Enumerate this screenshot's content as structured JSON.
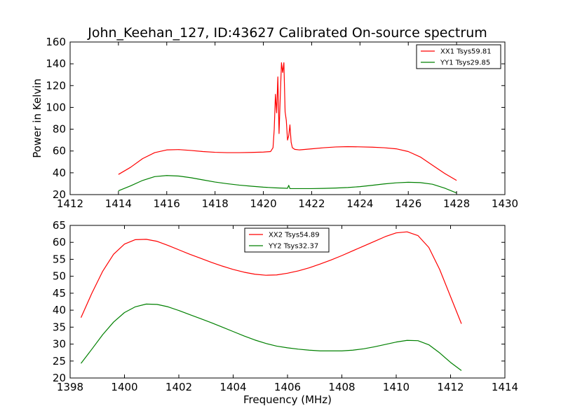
{
  "chart_data": [
    {
      "type": "line",
      "title": "John_Keehan_127, ID:43627 Calibrated On-source spectrum",
      "xlabel": "",
      "ylabel": "Power in Kelvin",
      "xlim": [
        1412,
        1430
      ],
      "ylim": [
        20,
        160
      ],
      "xticks": [
        1412,
        1414,
        1416,
        1418,
        1420,
        1422,
        1424,
        1426,
        1428,
        1430
      ],
      "yticks": [
        20,
        40,
        60,
        80,
        100,
        120,
        140,
        160
      ],
      "grid": false,
      "legend_position": "top-right",
      "series": [
        {
          "name": "XX1 Tsys59.81",
          "color": "#ff0000",
          "points": [
            [
              1414.0,
              38.5
            ],
            [
              1414.5,
              45
            ],
            [
              1415.0,
              53
            ],
            [
              1415.5,
              58.5
            ],
            [
              1416.0,
              61
            ],
            [
              1416.5,
              61.3
            ],
            [
              1417.0,
              60.5
            ],
            [
              1417.5,
              59.5
            ],
            [
              1418.0,
              58.8
            ],
            [
              1418.5,
              58.5
            ],
            [
              1419.0,
              58.5
            ],
            [
              1419.5,
              58.7
            ],
            [
              1420.0,
              59.0
            ],
            [
              1420.3,
              59.5
            ],
            [
              1420.4,
              63
            ],
            [
              1420.45,
              80
            ],
            [
              1420.5,
              112
            ],
            [
              1420.55,
              95
            ],
            [
              1420.6,
              128
            ],
            [
              1420.65,
              76
            ],
            [
              1420.7,
              110
            ],
            [
              1420.75,
              141
            ],
            [
              1420.8,
              132
            ],
            [
              1420.85,
              141
            ],
            [
              1420.9,
              96
            ],
            [
              1420.95,
              88
            ],
            [
              1421.0,
              70
            ],
            [
              1421.05,
              74
            ],
            [
              1421.1,
              84
            ],
            [
              1421.15,
              68
            ],
            [
              1421.2,
              63
            ],
            [
              1421.3,
              61.5
            ],
            [
              1421.5,
              61
            ],
            [
              1422.0,
              62
            ],
            [
              1422.5,
              63
            ],
            [
              1423.0,
              63.7
            ],
            [
              1423.5,
              64
            ],
            [
              1424.0,
              63.8
            ],
            [
              1424.5,
              63.5
            ],
            [
              1425.0,
              63
            ],
            [
              1425.5,
              62
            ],
            [
              1426.0,
              59.5
            ],
            [
              1426.5,
              54.5
            ],
            [
              1427.0,
              47
            ],
            [
              1427.5,
              39.5
            ],
            [
              1428.0,
              33
            ]
          ]
        },
        {
          "name": "YY1 Tsys29.85",
          "color": "#008000",
          "points": [
            [
              1414.0,
              23.5
            ],
            [
              1414.5,
              28
            ],
            [
              1415.0,
              33
            ],
            [
              1415.5,
              36.5
            ],
            [
              1416.0,
              37.5
            ],
            [
              1416.5,
              37
            ],
            [
              1417.0,
              35.5
            ],
            [
              1417.5,
              33.5
            ],
            [
              1418.0,
              31.5
            ],
            [
              1418.5,
              30
            ],
            [
              1419.0,
              28.7
            ],
            [
              1419.5,
              27.7
            ],
            [
              1420.0,
              26.8
            ],
            [
              1420.5,
              26.2
            ],
            [
              1421.0,
              25.8
            ],
            [
              1421.05,
              28.5
            ],
            [
              1421.1,
              25.5
            ],
            [
              1421.5,
              25.5
            ],
            [
              1422.0,
              25.5
            ],
            [
              1422.5,
              25.7
            ],
            [
              1423.0,
              26
            ],
            [
              1423.5,
              26.5
            ],
            [
              1424.0,
              27.3
            ],
            [
              1424.5,
              28.5
            ],
            [
              1425.0,
              29.8
            ],
            [
              1425.5,
              30.8
            ],
            [
              1426.0,
              31.3
            ],
            [
              1426.5,
              31
            ],
            [
              1427.0,
              29.5
            ],
            [
              1427.5,
              26
            ],
            [
              1428.0,
              21.5
            ]
          ]
        }
      ]
    },
    {
      "type": "line",
      "title": "",
      "xlabel": "Frequency (MHz)",
      "ylabel": "",
      "xlim": [
        1398,
        1414
      ],
      "ylim": [
        20,
        65
      ],
      "xticks": [
        1398,
        1400,
        1402,
        1404,
        1406,
        1408,
        1410,
        1412,
        1414
      ],
      "yticks": [
        20,
        25,
        30,
        35,
        40,
        45,
        50,
        55,
        60,
        65
      ],
      "grid": false,
      "legend_position": "top-center",
      "series": [
        {
          "name": "XX2 Tsys54.89",
          "color": "#ff0000",
          "points": [
            [
              1398.4,
              37.8
            ],
            [
              1398.8,
              45
            ],
            [
              1399.2,
              51.5
            ],
            [
              1399.6,
              56.5
            ],
            [
              1400.0,
              59.5
            ],
            [
              1400.4,
              60.8
            ],
            [
              1400.8,
              60.9
            ],
            [
              1401.2,
              60.3
            ],
            [
              1401.6,
              59.1
            ],
            [
              1402.0,
              57.8
            ],
            [
              1402.4,
              56.5
            ],
            [
              1402.8,
              55.3
            ],
            [
              1403.2,
              54.1
            ],
            [
              1403.6,
              53
            ],
            [
              1404.0,
              52
            ],
            [
              1404.4,
              51.2
            ],
            [
              1404.8,
              50.6
            ],
            [
              1405.2,
              50.3
            ],
            [
              1405.6,
              50.4
            ],
            [
              1406.0,
              50.9
            ],
            [
              1406.4,
              51.6
            ],
            [
              1406.8,
              52.5
            ],
            [
              1407.2,
              53.6
            ],
            [
              1407.6,
              54.8
            ],
            [
              1408.0,
              56.1
            ],
            [
              1408.4,
              57.5
            ],
            [
              1408.8,
              58.9
            ],
            [
              1409.2,
              60.3
            ],
            [
              1409.6,
              61.7
            ],
            [
              1410.0,
              62.8
            ],
            [
              1410.4,
              63.1
            ],
            [
              1410.8,
              62
            ],
            [
              1411.2,
              58.5
            ],
            [
              1411.6,
              52
            ],
            [
              1412.0,
              44
            ],
            [
              1412.4,
              36
            ]
          ]
        },
        {
          "name": "YY2 Tsys32.37",
          "color": "#008000",
          "points": [
            [
              1398.4,
              24.3
            ],
            [
              1398.8,
              28.5
            ],
            [
              1399.2,
              32.8
            ],
            [
              1399.6,
              36.5
            ],
            [
              1400.0,
              39.3
            ],
            [
              1400.4,
              41
            ],
            [
              1400.8,
              41.8
            ],
            [
              1401.2,
              41.7
            ],
            [
              1401.6,
              41
            ],
            [
              1402.0,
              39.9
            ],
            [
              1402.4,
              38.7
            ],
            [
              1402.8,
              37.5
            ],
            [
              1403.2,
              36.3
            ],
            [
              1403.6,
              35
            ],
            [
              1404.0,
              33.7
            ],
            [
              1404.4,
              32.4
            ],
            [
              1404.8,
              31.2
            ],
            [
              1405.2,
              30.2
            ],
            [
              1405.6,
              29.4
            ],
            [
              1406.0,
              28.9
            ],
            [
              1406.4,
              28.5
            ],
            [
              1406.8,
              28.2
            ],
            [
              1407.2,
              28
            ],
            [
              1407.6,
              28
            ],
            [
              1408.0,
              28
            ],
            [
              1408.4,
              28.2
            ],
            [
              1408.8,
              28.6
            ],
            [
              1409.2,
              29.2
            ],
            [
              1409.6,
              29.9
            ],
            [
              1410.0,
              30.6
            ],
            [
              1410.4,
              31.1
            ],
            [
              1410.8,
              31
            ],
            [
              1411.2,
              29.8
            ],
            [
              1411.6,
              27.4
            ],
            [
              1412.0,
              24.6
            ],
            [
              1412.4,
              22.2
            ]
          ]
        }
      ]
    }
  ]
}
